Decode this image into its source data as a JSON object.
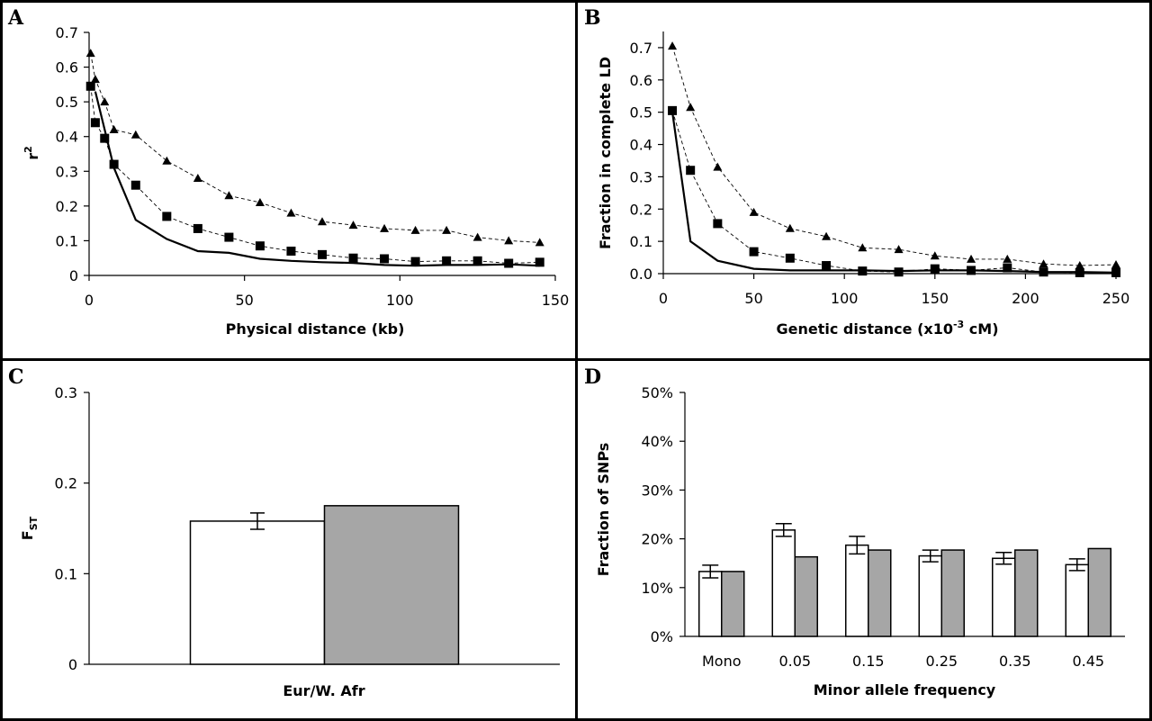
{
  "chart_data": [
    {
      "panel": "A",
      "type": "line",
      "xlabel": "Physical distance (kb)",
      "ylabel_main": "r",
      "ylabel_sup": "2",
      "xlim": [
        0,
        150
      ],
      "ylim": [
        0,
        0.7
      ],
      "xticks": [
        "0",
        "50",
        "100",
        "150"
      ],
      "yticks": [
        "0",
        "0.1",
        "0.2",
        "0.3",
        "0.4",
        "0.5",
        "0.6",
        "0.7"
      ],
      "grid": false,
      "series": [
        {
          "marker": "triangle",
          "style": "dashed",
          "x": [
            0.5,
            2,
            5,
            8,
            15,
            25,
            35,
            45,
            55,
            65,
            75,
            85,
            95,
            105,
            115,
            125,
            135,
            145
          ],
          "y": [
            0.64,
            0.565,
            0.5,
            0.42,
            0.405,
            0.33,
            0.28,
            0.23,
            0.21,
            0.18,
            0.155,
            0.145,
            0.135,
            0.13,
            0.13,
            0.11,
            0.1,
            0.095
          ]
        },
        {
          "marker": "square",
          "style": "dashed",
          "x": [
            0.5,
            2,
            5,
            8,
            15,
            25,
            35,
            45,
            55,
            65,
            75,
            85,
            95,
            105,
            115,
            125,
            135,
            145
          ],
          "y": [
            0.545,
            0.44,
            0.395,
            0.32,
            0.26,
            0.17,
            0.135,
            0.11,
            0.085,
            0.07,
            0.06,
            0.05,
            0.048,
            0.04,
            0.042,
            0.042,
            0.035,
            0.038
          ]
        },
        {
          "marker": "none",
          "style": "solid",
          "x": [
            2,
            5,
            8,
            15,
            25,
            35,
            45,
            55,
            65,
            75,
            85,
            95,
            105,
            115,
            125,
            135,
            145
          ],
          "y": [
            0.53,
            0.42,
            0.31,
            0.16,
            0.105,
            0.07,
            0.065,
            0.048,
            0.042,
            0.038,
            0.036,
            0.03,
            0.028,
            0.03,
            0.03,
            0.032,
            0.028
          ]
        }
      ]
    },
    {
      "panel": "B",
      "type": "line",
      "xlabel_main": "Genetic distance (x10",
      "xlabel_sup": "-3",
      "xlabel_tail": " cM)",
      "ylabel": "Fraction in complete LD",
      "xlim": [
        0,
        250
      ],
      "ylim": [
        0,
        0.75
      ],
      "xticks": [
        "0",
        "50",
        "100",
        "150",
        "200",
        "250"
      ],
      "yticks": [
        "0.0",
        "0.1",
        "0.2",
        "0.3",
        "0.4",
        "0.5",
        "0.6",
        "0.7"
      ],
      "grid": false,
      "series": [
        {
          "marker": "triangle",
          "style": "dashed",
          "x": [
            5,
            15,
            30,
            50,
            70,
            90,
            110,
            130,
            150,
            170,
            190,
            210,
            230,
            250
          ],
          "y": [
            0.705,
            0.515,
            0.33,
            0.19,
            0.14,
            0.115,
            0.08,
            0.075,
            0.055,
            0.045,
            0.045,
            0.03,
            0.025,
            0.028
          ]
        },
        {
          "marker": "square",
          "style": "dashed",
          "x": [
            5,
            15,
            30,
            50,
            70,
            90,
            110,
            130,
            150,
            170,
            190,
            210,
            230,
            250
          ],
          "y": [
            0.505,
            0.32,
            0.155,
            0.068,
            0.048,
            0.025,
            0.008,
            0.005,
            0.015,
            0.01,
            0.018,
            0.005,
            0.003,
            0.003
          ]
        },
        {
          "marker": "none",
          "style": "solid",
          "x": [
            5,
            15,
            30,
            50,
            70,
            90,
            110,
            130,
            150,
            170,
            190,
            210,
            230,
            250
          ],
          "y": [
            0.5,
            0.1,
            0.04,
            0.015,
            0.01,
            0.01,
            0.01,
            0.008,
            0.01,
            0.01,
            0.008,
            0.005,
            0.005,
            0.003
          ]
        }
      ]
    },
    {
      "panel": "C",
      "type": "bar",
      "xlabel": "Eur/W. Afr",
      "ylabel_main": "F",
      "ylabel_sub": "ST",
      "ylim": [
        0,
        0.3
      ],
      "yticks": [
        "0",
        "0.1",
        "0.2",
        "0.3"
      ],
      "categories": [
        "Eur/W. Afr"
      ],
      "series": [
        {
          "fill": "#ffffff",
          "values": [
            0.158
          ],
          "error": [
            0.009
          ]
        },
        {
          "fill": "#a6a6a6",
          "values": [
            0.175
          ]
        }
      ]
    },
    {
      "panel": "D",
      "type": "bar",
      "xlabel": "Minor allele frequency",
      "ylabel": "Fraction of SNPs",
      "ylim": [
        0,
        0.5
      ],
      "yticks": [
        "0%",
        "10%",
        "20%",
        "30%",
        "40%",
        "50%"
      ],
      "categories": [
        "Mono",
        "0.05",
        "0.15",
        "0.25",
        "0.35",
        "0.45"
      ],
      "series": [
        {
          "fill": "#ffffff",
          "values": [
            0.133,
            0.218,
            0.187,
            0.165,
            0.16,
            0.147
          ],
          "error": [
            0.013,
            0.013,
            0.018,
            0.012,
            0.012,
            0.012
          ]
        },
        {
          "fill": "#a6a6a6",
          "values": [
            0.133,
            0.163,
            0.177,
            0.177,
            0.177,
            0.18
          ]
        }
      ]
    }
  ]
}
